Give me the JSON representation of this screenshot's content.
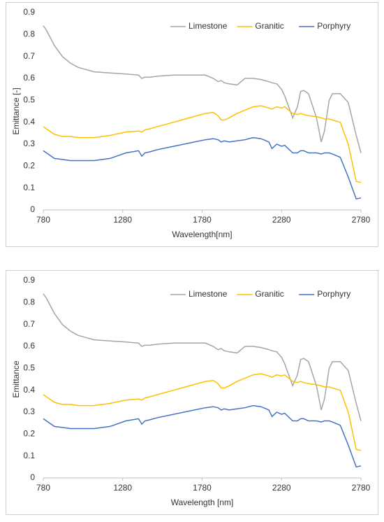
{
  "chart_data": [
    {
      "type": "line",
      "x_label": "Wavelength[nm]",
      "y_label": "Emittance [-]",
      "x": [
        780,
        800,
        850,
        900,
        950,
        1000,
        1100,
        1200,
        1300,
        1380,
        1400,
        1420,
        1450,
        1500,
        1600,
        1700,
        1800,
        1850,
        1880,
        1900,
        1920,
        1950,
        2000,
        2050,
        2100,
        2150,
        2200,
        2220,
        2250,
        2280,
        2300,
        2350,
        2380,
        2400,
        2420,
        2450,
        2500,
        2530,
        2550,
        2580,
        2600,
        2650,
        2700,
        2750,
        2780
      ],
      "series": [
        {
          "name": "Limestone",
          "color": "#a5a5a5",
          "values": [
            0.84,
            0.82,
            0.75,
            0.7,
            0.67,
            0.65,
            0.63,
            0.625,
            0.62,
            0.615,
            0.6,
            0.605,
            0.605,
            0.61,
            0.615,
            0.615,
            0.615,
            0.6,
            0.585,
            0.59,
            0.58,
            0.575,
            0.57,
            0.6,
            0.6,
            0.595,
            0.585,
            0.58,
            0.575,
            0.55,
            0.52,
            0.42,
            0.47,
            0.54,
            0.545,
            0.53,
            0.42,
            0.31,
            0.36,
            0.5,
            0.53,
            0.53,
            0.49,
            0.34,
            0.26
          ]
        },
        {
          "name": "Granitic",
          "color": "#ffc000",
          "values": [
            0.38,
            0.37,
            0.345,
            0.335,
            0.335,
            0.33,
            0.33,
            0.34,
            0.355,
            0.36,
            0.355,
            0.365,
            0.37,
            0.38,
            0.4,
            0.42,
            0.44,
            0.445,
            0.43,
            0.41,
            0.41,
            0.42,
            0.44,
            0.455,
            0.47,
            0.475,
            0.465,
            0.46,
            0.47,
            0.465,
            0.47,
            0.44,
            0.435,
            0.44,
            0.435,
            0.43,
            0.425,
            0.42,
            0.415,
            0.415,
            0.41,
            0.4,
            0.3,
            0.13,
            0.125
          ]
        },
        {
          "name": "Porphyry",
          "color": "#4472c4",
          "values": [
            0.27,
            0.26,
            0.235,
            0.23,
            0.225,
            0.225,
            0.225,
            0.235,
            0.26,
            0.27,
            0.245,
            0.26,
            0.265,
            0.275,
            0.29,
            0.305,
            0.32,
            0.325,
            0.32,
            0.31,
            0.315,
            0.31,
            0.315,
            0.32,
            0.33,
            0.325,
            0.31,
            0.28,
            0.3,
            0.29,
            0.295,
            0.26,
            0.26,
            0.27,
            0.27,
            0.26,
            0.26,
            0.255,
            0.26,
            0.26,
            0.255,
            0.24,
            0.15,
            0.05,
            0.055
          ]
        }
      ],
      "xlim": [
        780,
        2780
      ],
      "xticks": [
        780,
        1280,
        1780,
        2280,
        2780
      ],
      "ylim": [
        0,
        0.9
      ],
      "yticks": [
        0,
        0.1,
        0.2,
        0.3,
        0.4,
        0.5,
        0.6,
        0.7,
        0.8,
        0.9
      ],
      "legend": "top-right"
    },
    {
      "type": "line",
      "x_label": "Wavelength [nm]",
      "y_label": "Emittance",
      "x": [
        780,
        800,
        850,
        900,
        950,
        1000,
        1100,
        1200,
        1300,
        1380,
        1400,
        1420,
        1450,
        1500,
        1600,
        1700,
        1800,
        1850,
        1880,
        1900,
        1920,
        1950,
        2000,
        2050,
        2100,
        2150,
        2200,
        2220,
        2250,
        2280,
        2300,
        2350,
        2380,
        2400,
        2420,
        2450,
        2500,
        2530,
        2550,
        2580,
        2600,
        2650,
        2700,
        2750,
        2780
      ],
      "series": [
        {
          "name": "Limestone",
          "color": "#a5a5a5",
          "values": [
            0.84,
            0.82,
            0.75,
            0.7,
            0.67,
            0.65,
            0.63,
            0.625,
            0.62,
            0.615,
            0.6,
            0.605,
            0.605,
            0.61,
            0.615,
            0.615,
            0.615,
            0.6,
            0.585,
            0.59,
            0.58,
            0.575,
            0.57,
            0.6,
            0.6,
            0.595,
            0.585,
            0.58,
            0.575,
            0.55,
            0.52,
            0.42,
            0.47,
            0.54,
            0.545,
            0.53,
            0.42,
            0.31,
            0.36,
            0.5,
            0.53,
            0.53,
            0.49,
            0.34,
            0.26
          ]
        },
        {
          "name": "Granitic",
          "color": "#ffc000",
          "values": [
            0.38,
            0.37,
            0.345,
            0.335,
            0.335,
            0.33,
            0.33,
            0.34,
            0.355,
            0.36,
            0.355,
            0.365,
            0.37,
            0.38,
            0.4,
            0.42,
            0.44,
            0.445,
            0.43,
            0.41,
            0.41,
            0.42,
            0.44,
            0.455,
            0.47,
            0.475,
            0.465,
            0.46,
            0.47,
            0.465,
            0.47,
            0.44,
            0.435,
            0.44,
            0.435,
            0.43,
            0.425,
            0.42,
            0.415,
            0.415,
            0.41,
            0.4,
            0.3,
            0.13,
            0.125
          ]
        },
        {
          "name": "Porphyry",
          "color": "#4472c4",
          "values": [
            0.27,
            0.26,
            0.235,
            0.23,
            0.225,
            0.225,
            0.225,
            0.235,
            0.26,
            0.27,
            0.245,
            0.26,
            0.265,
            0.275,
            0.29,
            0.305,
            0.32,
            0.325,
            0.32,
            0.31,
            0.315,
            0.31,
            0.315,
            0.32,
            0.33,
            0.325,
            0.31,
            0.28,
            0.3,
            0.29,
            0.295,
            0.26,
            0.26,
            0.27,
            0.27,
            0.26,
            0.26,
            0.255,
            0.26,
            0.26,
            0.255,
            0.24,
            0.15,
            0.05,
            0.055
          ]
        }
      ],
      "xlim": [
        780,
        2780
      ],
      "xticks": [
        780,
        1280,
        1780,
        2280,
        2780
      ],
      "ylim": [
        0,
        0.9
      ],
      "yticks": [
        0,
        0.1,
        0.2,
        0.3,
        0.4,
        0.5,
        0.6,
        0.7,
        0.8,
        0.9
      ],
      "legend": "top-right"
    }
  ]
}
